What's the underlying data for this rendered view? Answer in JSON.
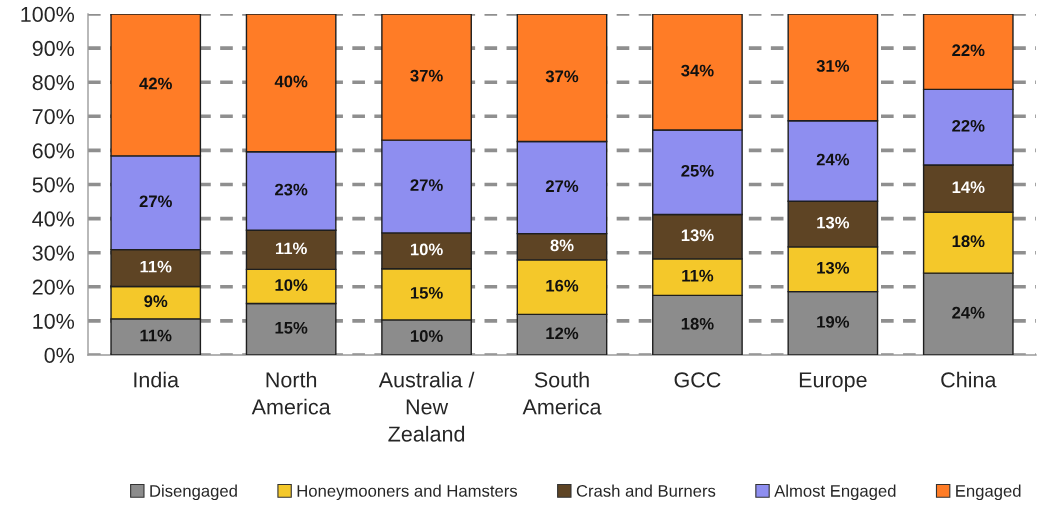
{
  "chart_data": {
    "type": "bar",
    "stacked": true,
    "categories": [
      "India",
      "North\nAmerica",
      "Australia /\nNew\nZealand",
      "South\nAmerica",
      "GCC",
      "Europe",
      "China"
    ],
    "series": [
      {
        "name": "Disengaged",
        "color": "#8c8c8c",
        "values": [
          10.6,
          15.1,
          10.3,
          11.9,
          17.5,
          18.6,
          24.0
        ],
        "value_labels": [
          "11%",
          "15%",
          "10%",
          "12%",
          "18%",
          "19%",
          "24%"
        ]
      },
      {
        "name": "Honeymooners and Hamsters",
        "color": "#f4c82a",
        "values": [
          9.5,
          10.0,
          15.0,
          16.0,
          10.7,
          13.1,
          17.9
        ],
        "value_labels": [
          "9%",
          "10%",
          "15%",
          "16%",
          "11%",
          "13%",
          "18%"
        ]
      },
      {
        "name": "Crash and Burners",
        "color": "#5e4424",
        "values": [
          10.8,
          11.5,
          10.5,
          7.7,
          13.0,
          13.4,
          13.8
        ],
        "value_labels": [
          "11%",
          "11%",
          "10%",
          "8%",
          "13%",
          "13%",
          "14%"
        ]
      },
      {
        "name": "Almost Engaged",
        "color": "#8e8ef0",
        "values": [
          27.5,
          23.0,
          27.2,
          27.0,
          24.8,
          23.6,
          22.2
        ],
        "value_labels": [
          "27%",
          "23%",
          "27%",
          "27%",
          "25%",
          "24%",
          "22%"
        ]
      },
      {
        "name": "Engaged",
        "color": "#ff7c26",
        "values": [
          41.6,
          40.4,
          37.0,
          37.4,
          34.0,
          31.3,
          22.1
        ],
        "value_labels": [
          "42%",
          "40%",
          "37%",
          "37%",
          "34%",
          "31%",
          "22%"
        ]
      }
    ],
    "ylim": [
      0,
      100
    ],
    "yticks": [
      {
        "value": 0,
        "label": "0%"
      },
      {
        "value": 10,
        "label": "10%"
      },
      {
        "value": 20,
        "label": "20%"
      },
      {
        "value": 30,
        "label": "30%"
      },
      {
        "value": 40,
        "label": "40%"
      },
      {
        "value": 50,
        "label": "50%"
      },
      {
        "value": 60,
        "label": "60%"
      },
      {
        "value": 70,
        "label": "70%"
      },
      {
        "value": 80,
        "label": "80%"
      },
      {
        "value": 90,
        "label": "90%"
      },
      {
        "value": 100,
        "label": "100%"
      }
    ],
    "grid": "y",
    "legend": "bottom"
  }
}
